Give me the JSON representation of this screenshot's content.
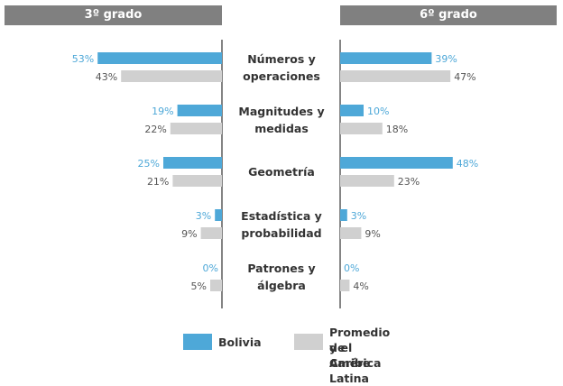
{
  "colors": {
    "bolivia": "#4ea8d8",
    "average": "#d0d0d0",
    "header": "#808080",
    "value_bolivia": "#4ea8d8",
    "value_average": "#555555"
  },
  "headers": {
    "left": "3º grado",
    "right": "6º grado"
  },
  "legend": {
    "bolivia": "Bolivia",
    "average_line1": "Promedio de América Latina",
    "average_line2": "y el Caribe"
  },
  "chart_data": {
    "type": "bar",
    "categories": [
      [
        "Números y",
        "operaciones"
      ],
      [
        "Magnitudes y",
        "medidas"
      ],
      [
        "Geometría"
      ],
      [
        "Estadística y",
        "probabilidad"
      ],
      [
        "Patrones y",
        "álgebra"
      ]
    ],
    "panels": [
      {
        "title": "3º grado",
        "series": [
          {
            "name": "Bolivia",
            "values": [
              53,
              19,
              25,
              3,
              0
            ]
          },
          {
            "name": "Promedio de América Latina y el Caribe",
            "values": [
              43,
              22,
              21,
              9,
              5
            ]
          }
        ]
      },
      {
        "title": "6º grado",
        "series": [
          {
            "name": "Bolivia",
            "values": [
              39,
              10,
              48,
              3,
              0
            ]
          },
          {
            "name": "Promedio de América Latina y el Caribe",
            "values": [
              47,
              18,
              23,
              9,
              4
            ]
          }
        ]
      }
    ],
    "value_suffix": "%"
  }
}
